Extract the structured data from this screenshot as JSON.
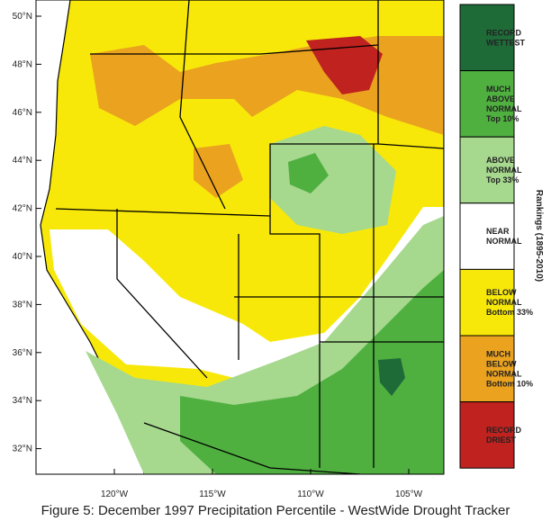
{
  "lat_labels": [
    "50°N",
    "48°N",
    "46°N",
    "44°N",
    "42°N",
    "40°N",
    "38°N",
    "36°N",
    "34°N",
    "32°N"
  ],
  "lon_labels": [
    "120°W",
    "115°W",
    "110°W",
    "105°W"
  ],
  "legend": {
    "title": "Rankings (1895-2010)",
    "items": [
      {
        "lines": [
          "RECORD",
          "WETTEST"
        ],
        "color": "#1e6b38"
      },
      {
        "lines": [
          "MUCH",
          "ABOVE",
          "NORMAL",
          "Top 10%"
        ],
        "color": "#4fb040"
      },
      {
        "lines": [
          "ABOVE",
          "NORMAL",
          "Top 33%"
        ],
        "color": "#a6d88e"
      },
      {
        "lines": [
          "NEAR",
          "NORMAL"
        ],
        "color": "#ffffff"
      },
      {
        "lines": [
          "BELOW",
          "NORMAL",
          "Bottom 33%"
        ],
        "color": "#f7e80a"
      },
      {
        "lines": [
          "MUCH",
          "BELOW",
          "NORMAL",
          "Bottom 10%"
        ],
        "color": "#eaa21f"
      },
      {
        "lines": [
          "RECORD",
          "DRIEST"
        ],
        "color": "#c0221f"
      }
    ]
  },
  "caption": "Figure 5: December 1997 Precipitation Percentile - WestWide Drought Tracker"
}
